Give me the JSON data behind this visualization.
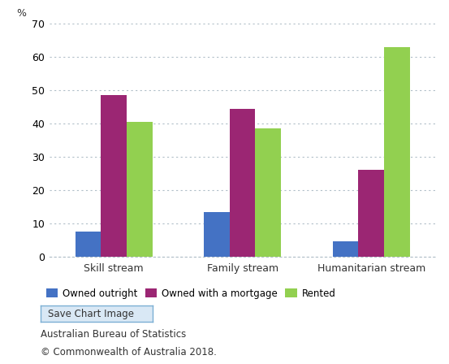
{
  "categories": [
    "Skill stream",
    "Family stream",
    "Humanitarian stream"
  ],
  "series": [
    {
      "label": "Owned outright",
      "color": "#4472c4",
      "values": [
        7.5,
        13.5,
        4.5
      ]
    },
    {
      "label": "Owned with a mortgage",
      "color": "#9b2673",
      "values": [
        48.5,
        44.5,
        26.0
      ]
    },
    {
      "label": "Rented",
      "color": "#92d050",
      "values": [
        40.5,
        38.5,
        63.0
      ]
    }
  ],
  "ylim": [
    0,
    70
  ],
  "yticks": [
    0,
    10,
    20,
    30,
    40,
    50,
    60,
    70
  ],
  "ylabel": "%",
  "bar_width": 0.2,
  "background_color": "#ffffff",
  "plot_bg_color": "#ffffff",
  "grid_color": "#b0bec8",
  "axis_color": "#b0bec8",
  "footer_lines": [
    "Australian Bureau of Statistics",
    "© Commonwealth of Australia 2018."
  ],
  "legend_labels": [
    "Owned outright",
    "Owned with a mortgage",
    "Rented"
  ],
  "legend_colors": [
    "#4472c4",
    "#9b2673",
    "#92d050"
  ],
  "save_button_text": "Save Chart Image"
}
